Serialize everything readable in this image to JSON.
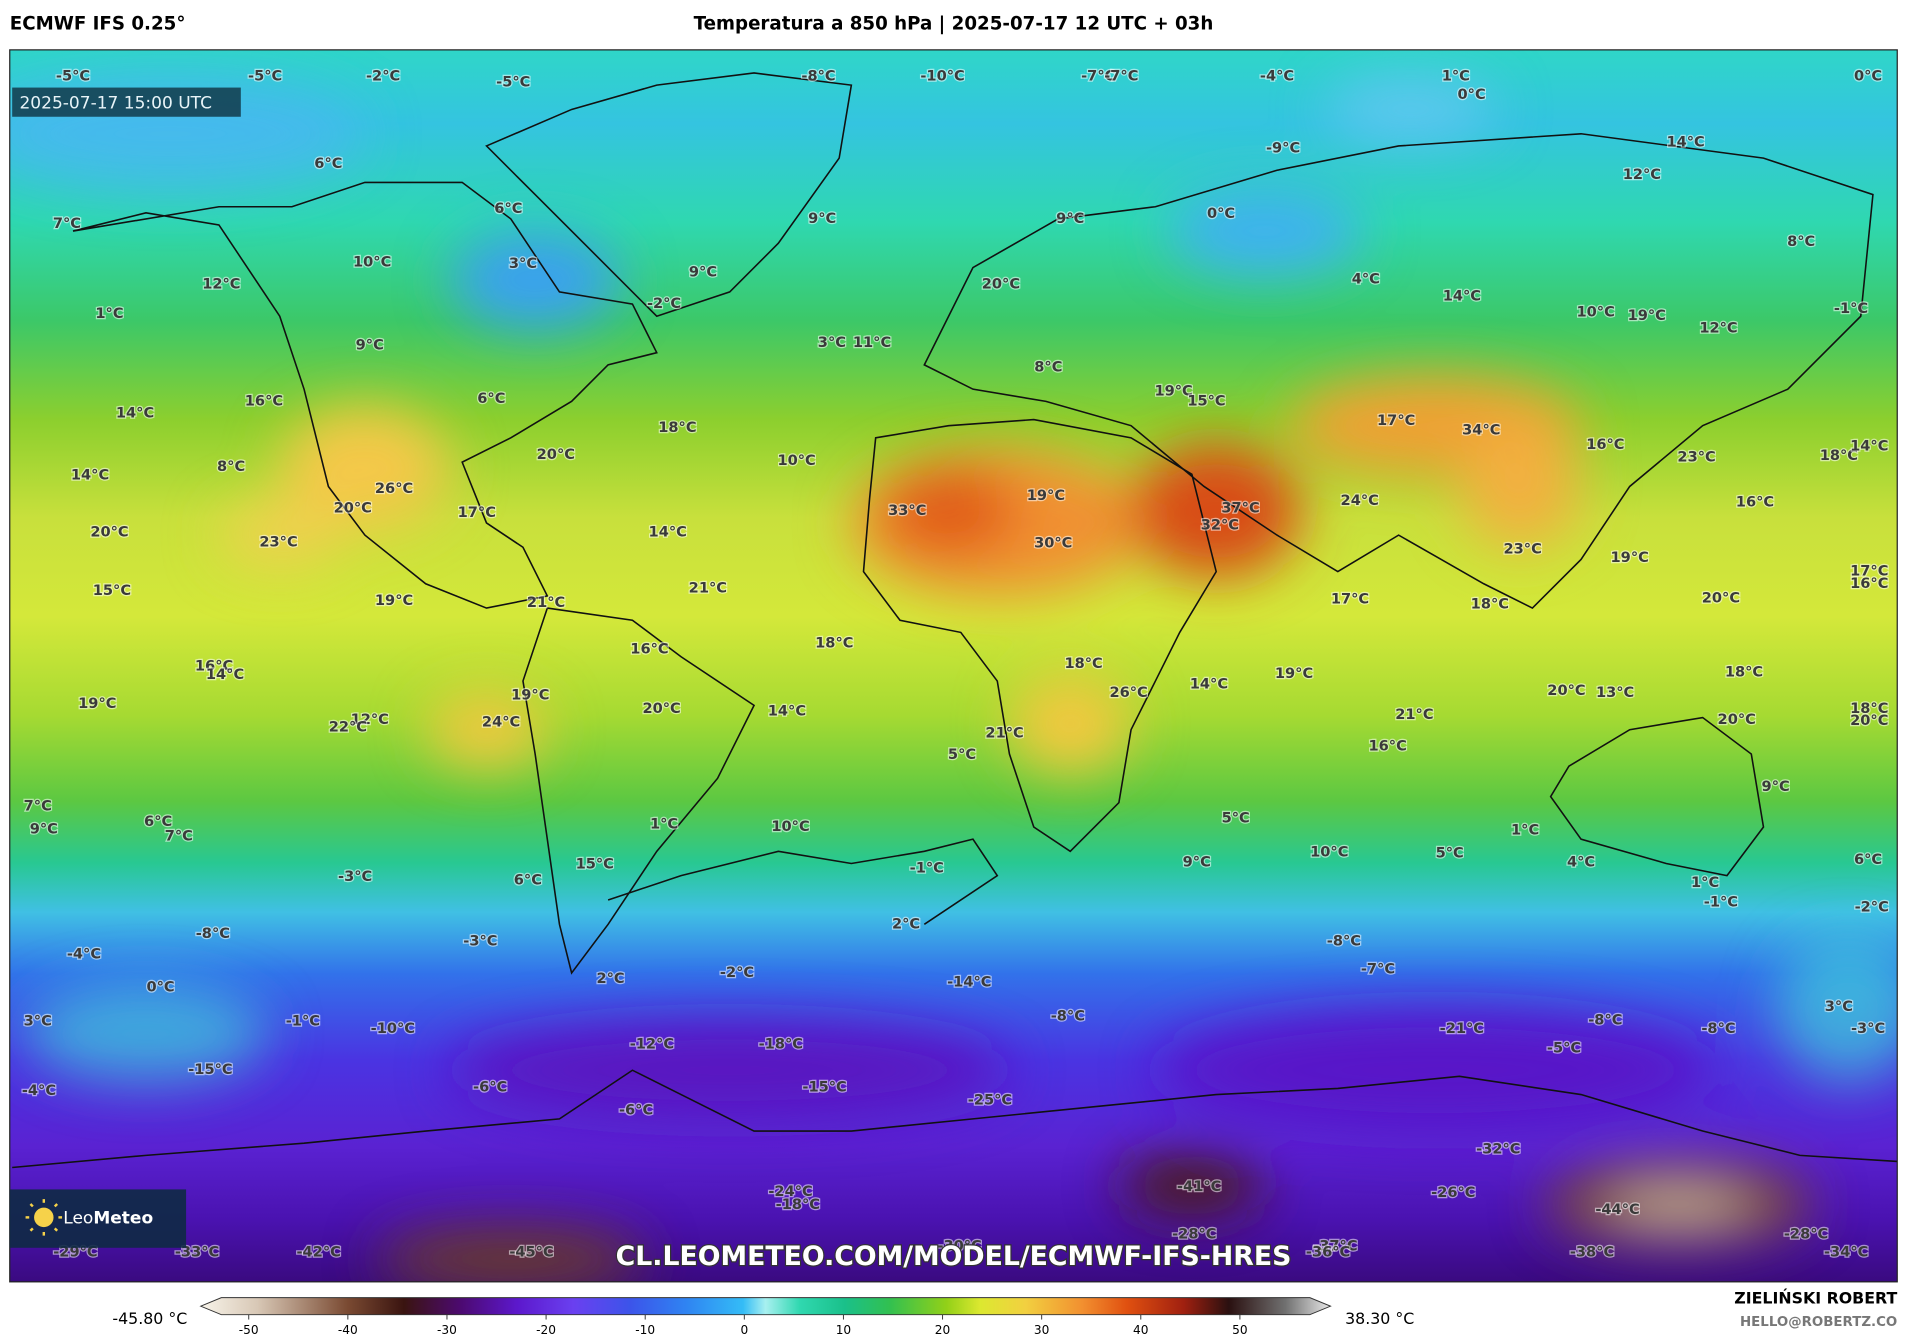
{
  "header": {
    "model": "ECMWF IFS 0.25°",
    "title": "Temperatura a 850 hPa | 2025-07-17 12 UTC + 03h"
  },
  "timestamp": "2025-07-17 15:00 UTC",
  "map_labels": [
    "-5°C",
    "-5°C",
    "-2°C",
    "-5°C",
    "-8°C",
    "-10°C",
    "-7°C",
    "-7°C",
    "-4°C",
    "1°C",
    "0°C",
    "0°C",
    "6°C",
    "-9°C",
    "14°C",
    "12°C",
    "7°C",
    "6°C",
    "9°C",
    "9°C",
    "0°C",
    "8°C",
    "10°C",
    "3°C",
    "9°C",
    "20°C",
    "4°C",
    "12°C",
    "1°C",
    "-2°C",
    "14°C",
    "10°C",
    "19°C",
    "12°C",
    "-1°C",
    "9°C",
    "3°C",
    "11°C",
    "8°C",
    "16°C",
    "6°C",
    "19°C",
    "15°C",
    "14°C",
    "18°C",
    "17°C",
    "34°C",
    "20°C",
    "10°C",
    "16°C",
    "23°C",
    "18°C",
    "14°C",
    "14°C",
    "8°C",
    "26°C",
    "19°C",
    "24°C",
    "16°C",
    "20°C",
    "17°C",
    "33°C",
    "37°C",
    "32°C",
    "20°C",
    "23°C",
    "14°C",
    "30°C",
    "23°C",
    "19°C",
    "17°C",
    "16°C",
    "15°C",
    "21°C",
    "19°C",
    "21°C",
    "17°C",
    "18°C",
    "20°C",
    "18°C",
    "16°C",
    "18°C",
    "14°C",
    "19°C",
    "18°C",
    "16°C",
    "14°C",
    "19°C",
    "14°C",
    "20°C",
    "19°C",
    "26°C",
    "21°C",
    "20°C",
    "13°C",
    "18°C",
    "20°C",
    "20°C",
    "12°C",
    "22°C",
    "24°C",
    "21°C",
    "16°C",
    "5°C",
    "7°C",
    "6°C",
    "9°C",
    "7°C",
    "1°C",
    "10°C",
    "5°C",
    "1°C",
    "9°C",
    "15°C",
    "-1°C",
    "9°C",
    "10°C",
    "5°C",
    "4°C",
    "6°C",
    "-3°C",
    "6°C",
    "1°C",
    "-1°C",
    "-2°C",
    "2°C",
    "-8°C",
    "-3°C",
    "-8°C",
    "-4°C",
    "-7°C",
    "0°C",
    "2°C",
    "-2°C",
    "-14°C",
    "-8°C",
    "3°C",
    "3°C",
    "-1°C",
    "-10°C",
    "-12°C",
    "-18°C",
    "-21°C",
    "-8°C",
    "-8°C",
    "-5°C",
    "-3°C",
    "-15°C",
    "-6°C",
    "-15°C",
    "-4°C",
    "-25°C",
    "-6°C",
    "-32°C",
    "-41°C",
    "-26°C",
    "-24°C",
    "-18°C",
    "-44°C",
    "-28°C",
    "-28°C",
    "-29°C",
    "-33°C",
    "-42°C",
    "-45°C",
    "-30°C",
    "-37°C",
    "-36°C",
    "-38°C",
    "-34°C"
  ],
  "logo": {
    "light": "Leo",
    "bold": "Meteo"
  },
  "watermark": "CL.LEOMETEO.COM/MODEL/ECMWF-IFS-HRES",
  "colorbar": {
    "min_label": "-45.80 °C",
    "max_label": "38.30 °C",
    "ticks": [
      -50,
      -40,
      -30,
      -20,
      -10,
      0,
      10,
      20,
      30,
      40,
      50
    ]
  },
  "credit": {
    "author": "ZIELIŃSKI ROBERT",
    "email": "HELLO@ROBERTZ.CO"
  }
}
